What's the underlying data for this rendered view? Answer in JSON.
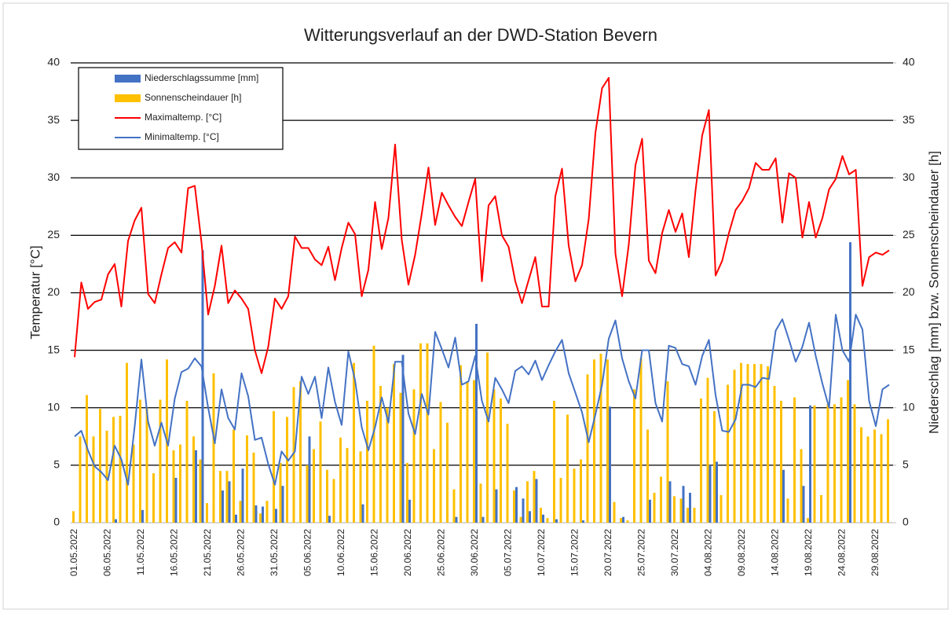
{
  "chart_data": {
    "type": "combo",
    "title": "Witterungsverlauf an der DWD-Station Bevern",
    "y_label": "Temperatur [°C]",
    "y2_label": "Niederschlag [mm] bzw. Sonnenscheindauer [h]",
    "legend": "upper left",
    "grid": true,
    "ylim": [
      0,
      40
    ],
    "yticks": [
      0,
      5,
      10,
      15,
      20,
      25,
      30,
      35,
      40
    ],
    "y2lim": [
      0,
      40
    ],
    "y2ticks": [
      0,
      5,
      10,
      15,
      20,
      25,
      30,
      35,
      40
    ],
    "categories": [
      "01.05.2022",
      null,
      null,
      null,
      null,
      "06.05.2022",
      null,
      null,
      null,
      null,
      "11.05.2022",
      null,
      null,
      null,
      null,
      "16.05.2022",
      null,
      null,
      null,
      null,
      "21.05.2022",
      null,
      null,
      null,
      null,
      "26.05.2022",
      null,
      null,
      null,
      null,
      "31.05.2022",
      null,
      null,
      null,
      null,
      "05.06.2022",
      null,
      null,
      null,
      null,
      "10.06.2022",
      null,
      null,
      null,
      null,
      "15.06.2022",
      null,
      null,
      null,
      null,
      "20.06.2022",
      null,
      null,
      null,
      null,
      "25.06.2022",
      null,
      null,
      null,
      null,
      "30.06.2022",
      null,
      null,
      null,
      null,
      "05.07.2022",
      null,
      null,
      null,
      null,
      "10.07.2022",
      null,
      null,
      null,
      null,
      "15.07.2022",
      null,
      null,
      null,
      null,
      "20.07.2022",
      null,
      null,
      null,
      null,
      "25.07.2022",
      null,
      null,
      null,
      null,
      "30.07.2022",
      null,
      null,
      null,
      null,
      "04.08.2022",
      null,
      null,
      null,
      null,
      "09.08.2022",
      null,
      null,
      null,
      null,
      "14.08.2022",
      null,
      null,
      null,
      null,
      "19.08.2022",
      null,
      null,
      null,
      null,
      "24.08.2022",
      null,
      null,
      null,
      null,
      "29.08.2022",
      null,
      null
    ],
    "series": [
      {
        "name": "Niederschlagssumme [mm]",
        "type": "bar",
        "axis": "y2",
        "color": "#4472c4",
        "values": [
          0,
          0,
          0,
          0,
          0,
          0,
          0.3,
          0,
          0,
          0,
          1.1,
          0,
          0,
          0,
          0,
          3.9,
          0,
          0,
          6.3,
          23.7,
          0,
          0,
          2.8,
          3.6,
          0.7,
          4.7,
          0,
          1.5,
          1.4,
          0,
          1.2,
          3.2,
          0,
          0,
          0,
          7.5,
          0,
          0,
          0.6,
          0,
          0,
          0,
          0,
          1.6,
          0,
          0,
          0,
          0,
          0,
          14.6,
          2.0,
          0,
          0,
          0,
          0,
          0,
          0,
          0.5,
          0,
          0,
          17.3,
          0.5,
          0,
          2.9,
          0,
          0,
          3.1,
          2.1,
          1.0,
          3.8,
          0.7,
          0,
          0.3,
          0,
          0,
          0,
          0.2,
          0,
          0,
          0,
          10.1,
          0,
          0.5,
          0,
          0,
          0,
          2.0,
          0,
          0,
          3.6,
          0,
          3.2,
          2.6,
          0,
          0,
          5.0,
          5.3,
          0,
          0,
          0,
          0,
          0,
          0,
          0,
          0,
          0,
          4.6,
          0,
          0,
          3.2,
          10.2,
          0,
          0,
          0,
          0,
          0,
          24.4,
          0,
          0,
          0,
          0,
          0,
          0
        ]
      },
      {
        "name": "Sonnenscheindauer [h]",
        "type": "bar",
        "axis": "y2",
        "color": "#ffc000",
        "values": [
          1.0,
          7.5,
          11.1,
          7.5,
          9.9,
          8.0,
          9.2,
          9.3,
          13.9,
          6.8,
          10.7,
          10.0,
          4.3,
          10.7,
          14.2,
          6.3,
          6.8,
          10.6,
          7.5,
          5.5,
          1.7,
          13.0,
          4.5,
          4.5,
          8.1,
          1.9,
          7.6,
          6.1,
          0.8,
          1.9,
          9.7,
          5.2,
          9.2,
          11.8,
          12.3,
          5.0,
          6.4,
          8.8,
          4.6,
          3.8,
          7.4,
          6.5,
          13.9,
          6.2,
          10.6,
          15.4,
          11.9,
          10.0,
          13.8,
          11.3,
          5.2,
          11.6,
          15.6,
          15.6,
          6.4,
          10.5,
          8.7,
          2.9,
          13.7,
          12.3,
          12.4,
          3.4,
          14.8,
          11.6,
          10.8,
          8.6,
          2.8,
          0.5,
          3.6,
          4.5,
          1.3,
          0.4,
          10.6,
          3.9,
          9.4,
          4.7,
          5.5,
          12.9,
          14.2,
          14.7,
          14.2,
          1.8,
          0.4,
          0.2,
          11.6,
          14.3,
          8.1,
          2.6,
          4.0,
          12.3,
          2.3,
          2.1,
          1.3,
          1.3,
          10.8,
          12.6,
          9.7,
          2.4,
          12.0,
          13.3,
          13.9,
          13.8,
          13.8,
          13.8,
          13.6,
          11.9,
          10.6,
          2.1,
          10.9,
          6.4,
          0.4,
          10.2,
          2.4,
          10.3,
          10.3,
          10.9,
          12.4,
          10.3,
          8.3,
          7.5,
          8.1,
          7.7,
          9.0
        ]
      },
      {
        "name": "Maximaltemp. [°C]",
        "type": "line",
        "color": "#ff0000",
        "values": [
          14.4,
          20.9,
          18.6,
          19.2,
          19.4,
          21.6,
          22.5,
          18.8,
          24.5,
          26.3,
          27.4,
          19.9,
          19.1,
          21.6,
          23.9,
          24.4,
          23.5,
          29.1,
          29.3,
          24.4,
          18.1,
          20.6,
          24.1,
          19.1,
          20.2,
          19.5,
          18.6,
          15.0,
          13.0,
          15.3,
          19.5,
          18.6,
          19.7,
          24.9,
          23.9,
          23.9,
          22.9,
          22.4,
          24.0,
          21.1,
          23.9,
          26.1,
          25.1,
          19.7,
          22.0,
          27.9,
          23.8,
          26.5,
          32.9,
          24.6,
          20.7,
          23.3,
          26.9,
          30.9,
          25.9,
          28.7,
          27.6,
          26.6,
          25.8,
          27.9,
          29.9,
          21.0,
          27.6,
          28.4,
          25.0,
          24.0,
          21.0,
          19.1,
          21.1,
          23.1,
          18.8,
          18.8,
          28.4,
          30.8,
          24.1,
          21.0,
          22.4,
          26.4,
          33.9,
          37.8,
          38.7,
          23.4,
          19.7,
          24.2,
          31.1,
          33.4,
          22.8,
          21.7,
          25.2,
          27.2,
          25.3,
          26.9,
          23.1,
          28.9,
          33.7,
          35.9,
          21.5,
          22.8,
          25.2,
          27.2,
          28.0,
          29.1,
          31.3,
          30.7,
          30.7,
          31.7,
          26.1,
          30.4,
          30.0,
          24.8,
          27.9,
          24.8,
          26.5,
          29.0,
          29.9,
          31.9,
          30.3,
          30.7,
          20.6,
          23.1,
          23.5,
          23.3,
          23.7
        ]
      },
      {
        "name": "Minimaltemp. [°C]",
        "type": "line",
        "color": "#4472c4",
        "values": [
          7.5,
          8.0,
          6.3,
          4.9,
          4.4,
          3.7,
          6.7,
          5.5,
          3.3,
          8.4,
          14.2,
          8.8,
          6.7,
          8.7,
          6.7,
          10.8,
          13.1,
          13.4,
          14.3,
          13.6,
          10.0,
          6.9,
          11.6,
          9.1,
          8.1,
          13.0,
          11.0,
          7.2,
          7.4,
          5.1,
          3.3,
          6.2,
          5.4,
          6.2,
          12.7,
          11.2,
          12.7,
          9.1,
          13.5,
          10.5,
          8.5,
          14.9,
          12.4,
          8.3,
          6.3,
          8.3,
          10.9,
          8.7,
          14.0,
          14.0,
          9.5,
          7.7,
          11.2,
          9.4,
          16.6,
          15.1,
          13.5,
          16.1,
          12.0,
          12.3,
          14.5,
          10.6,
          8.8,
          12.6,
          11.6,
          10.4,
          13.2,
          13.6,
          12.9,
          14.1,
          12.4,
          13.7,
          14.9,
          15.9,
          13.0,
          11.3,
          9.6,
          7.0,
          9.4,
          12.0,
          16.0,
          17.6,
          14.3,
          12.3,
          10.8,
          15.0,
          15.0,
          10.4,
          8.8,
          15.4,
          15.2,
          13.8,
          13.6,
          12.0,
          14.5,
          15.9,
          11.1,
          8.0,
          7.9,
          9.0,
          12.0,
          12.0,
          11.8,
          12.6,
          12.5,
          16.7,
          17.7,
          15.9,
          14.0,
          15.3,
          17.4,
          14.5,
          12.1,
          10.0,
          18.1,
          15.0,
          14.0,
          18.1,
          16.8,
          10.6,
          8.4,
          11.6,
          12.0
        ]
      }
    ]
  }
}
